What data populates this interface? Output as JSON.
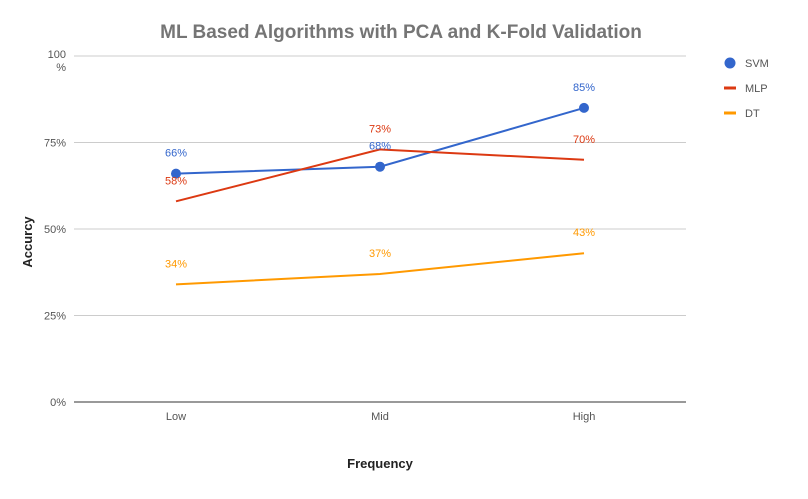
{
  "chart_data": {
    "type": "line",
    "title": "ML Based Algorithms with PCA and K-Fold Validation",
    "xlabel": "Frequency",
    "ylabel": "Accurcy",
    "categories": [
      "Low",
      "Mid",
      "High"
    ],
    "ylim": [
      0,
      100
    ],
    "yticks": [
      {
        "value": 0,
        "label": "0%"
      },
      {
        "value": 25,
        "label": "25%"
      },
      {
        "value": 50,
        "label": "50%"
      },
      {
        "value": 75,
        "label": "75%"
      },
      {
        "value": 100,
        "label": "100%"
      }
    ],
    "grid": true,
    "legend_position": "right",
    "series": [
      {
        "name": "SVM",
        "color": "#3366cc",
        "values": [
          66,
          68,
          85
        ],
        "labels": [
          "66%",
          "68%",
          "85%"
        ],
        "markers": true
      },
      {
        "name": "MLP",
        "color": "#dc3912",
        "values": [
          58,
          73,
          70
        ],
        "labels": [
          "58%",
          "73%",
          "70%"
        ],
        "markers": false
      },
      {
        "name": "DT",
        "color": "#ff9900",
        "values": [
          34,
          37,
          43
        ],
        "labels": [
          "34%",
          "37%",
          "43%"
        ],
        "markers": false
      }
    ]
  }
}
